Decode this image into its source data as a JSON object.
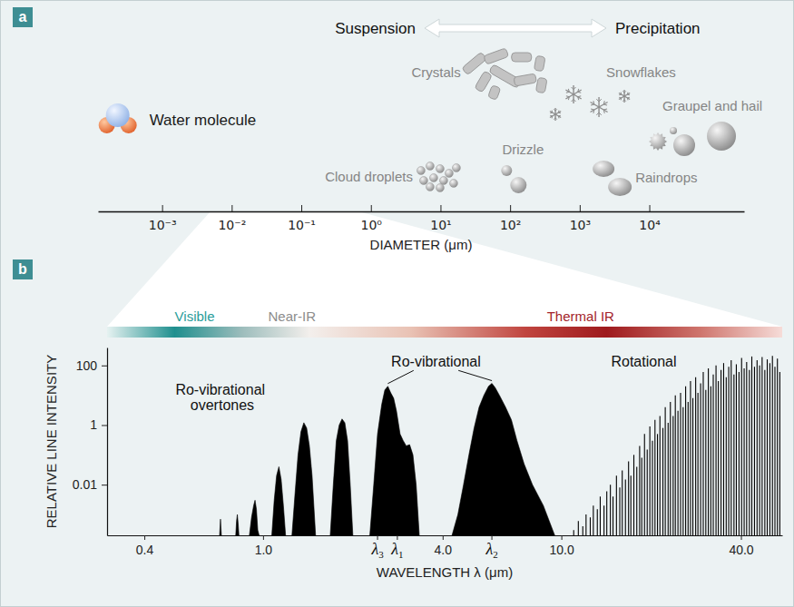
{
  "chart_data": [
    {
      "type": "scale",
      "panel_label": "a",
      "xlabel": "DIAMETER (μm)",
      "log": "x",
      "xlim": [
        0.00012,
        230000
      ],
      "xticks": [
        {
          "value": 0.001,
          "label": "10⁻³"
        },
        {
          "value": 0.01,
          "label": "10⁻²"
        },
        {
          "value": 0.1,
          "label": "10⁻¹"
        },
        {
          "value": 1,
          "label": "10⁰"
        },
        {
          "value": 10,
          "label": "10¹"
        },
        {
          "value": 100,
          "label": "10²"
        },
        {
          "value": 1000,
          "label": "10³"
        },
        {
          "value": 10000,
          "label": "10⁴"
        }
      ],
      "header": [
        "Suspension",
        "Precipitation"
      ],
      "items": [
        {
          "name": "Water molecule",
          "x": 0.00023
        },
        {
          "name": "Cloud droplets",
          "x": 9
        },
        {
          "name": "Drizzle",
          "x": 110
        },
        {
          "name": "Crystals",
          "x": 80
        },
        {
          "name": "Snowflakes",
          "x": 1400
        },
        {
          "name": "Raindrops",
          "x": 2800
        },
        {
          "name": "Graupel and hail",
          "x": 38000
        }
      ]
    },
    {
      "type": "spectrum",
      "panel_label": "b",
      "xlabel": "WAVELENGTH λ (μm)",
      "ylabel": "RELATIVE LINE INTENSITY",
      "log": true,
      "xlim": [
        0.3,
        55
      ],
      "ylim": [
        0.0002,
        400
      ],
      "xticks": [
        0.4,
        {
          "value": 1,
          "label": "1.0"
        },
        {
          "value": 4,
          "label": "4.0"
        },
        {
          "value": 10,
          "label": "10.0"
        },
        {
          "value": 40,
          "label": "40.0"
        }
      ],
      "yticks": [
        0.01,
        1,
        100
      ],
      "regions": [
        {
          "name": "Visible",
          "x": 0.59,
          "color": "#2a9d9a"
        },
        {
          "name": "Near-IR",
          "x": 1.25,
          "color": "#8c8c8c"
        },
        {
          "name": "Thermal IR",
          "x": 11.6,
          "color": "#a3232a"
        }
      ],
      "series": [
        {
          "type": "area",
          "color": "#000000",
          "x": [
            0.715,
            0.72,
            0.725,
            null,
            0.81,
            0.815,
            0.82,
            0.825,
            0.83,
            null,
            0.9,
            0.915,
            0.93,
            0.94,
            0.95,
            0.96,
            0.97,
            null,
            1.07,
            1.09,
            1.11,
            1.13,
            1.15,
            1.17,
            1.19,
            null,
            1.25,
            1.28,
            1.31,
            1.34,
            1.37,
            1.4,
            1.43,
            1.46,
            1.5,
            null,
            1.68,
            1.72,
            1.76,
            1.8,
            1.84,
            1.88,
            1.92,
            1.96,
            2.0,
            null,
            2.28,
            2.35,
            2.42,
            2.5,
            2.56,
            2.62,
            2.68,
            2.74,
            2.8,
            2.88,
            2.95,
            3.02,
            3.1,
            3.18,
            3.26,
            3.34,
            null,
            4.3,
            4.5,
            4.7,
            4.9,
            5.1,
            5.3,
            5.5,
            5.7,
            5.85,
            6.0,
            6.2,
            6.5,
            6.8,
            7.1,
            7.5,
            8.0,
            8.7,
            9.5
          ],
          "values": [
            0.0002,
            0.0007,
            0.0002,
            null,
            0.0002,
            0.0006,
            0.001,
            0.0005,
            0.0002,
            null,
            0.0002,
            0.0008,
            0.002,
            0.003,
            0.0015,
            0.0003,
            0.0002,
            null,
            0.0002,
            0.003,
            0.02,
            0.04,
            0.015,
            0.002,
            0.0002,
            null,
            0.0002,
            0.005,
            0.1,
            0.6,
            1.2,
            0.8,
            0.2,
            0.02,
            0.0002,
            null,
            0.0002,
            0.01,
            0.3,
            1.0,
            1.6,
            1.2,
            0.3,
            0.01,
            0.0002,
            null,
            0.0002,
            0.01,
            0.5,
            5,
            15,
            20,
            12,
            8,
            3,
            0.5,
            0.3,
            0.2,
            0.22,
            0.1,
            0.01,
            0.0002,
            null,
            0.0002,
            0.001,
            0.01,
            0.1,
            0.8,
            4,
            10,
            20,
            25,
            18,
            10,
            4,
            1.5,
            0.3,
            0.05,
            0.01,
            0.002,
            0.0002
          ]
        },
        {
          "type": "stem",
          "color": "#000000",
          "x": [
            11.0,
            11.4,
            11.8,
            12.1,
            12.5,
            12.8,
            13.2,
            13.5,
            13.9,
            14.2,
            14.6,
            14.9,
            15.3,
            15.7,
            16.0,
            16.4,
            16.8,
            17.1,
            17.5,
            17.9,
            18.3,
            18.6,
            19.0,
            19.4,
            19.8,
            20.2,
            20.6,
            21.0,
            21.4,
            21.9,
            22.3,
            22.8,
            23.2,
            23.7,
            24.1,
            24.6,
            25.1,
            25.6,
            26.1,
            26.6,
            27.1,
            27.6,
            28.2,
            28.7,
            29.3,
            29.9,
            30.5,
            31.1,
            31.7,
            32.3,
            33.0,
            33.6,
            34.3,
            35.0,
            35.7,
            36.4,
            37.1,
            37.9,
            38.6,
            39.4,
            40.2,
            41.0,
            41.8,
            42.7,
            43.5,
            44.4,
            45.3,
            46.2,
            47.1,
            48.1,
            49.0,
            50.0,
            51.0,
            52.0,
            53.0,
            54.0
          ],
          "values": [
            0.0003,
            0.0006,
            0.0004,
            0.001,
            0.0008,
            0.002,
            0.0015,
            0.004,
            0.002,
            0.006,
            0.01,
            0.004,
            0.02,
            0.008,
            0.03,
            0.015,
            0.06,
            0.02,
            0.1,
            0.04,
            0.2,
            0.08,
            0.5,
            0.15,
            0.9,
            0.3,
            1.5,
            0.5,
            2,
            0.8,
            4,
            1.2,
            6,
            2,
            10,
            3,
            12,
            4,
            20,
            6,
            30,
            8,
            40,
            12,
            25,
            60,
            15,
            80,
            20,
            50,
            100,
            30,
            70,
            120,
            40,
            90,
            150,
            50,
            110,
            60,
            180,
            80,
            130,
            70,
            200,
            90,
            150,
            100,
            190,
            70,
            160,
            120,
            210,
            90,
            170,
            60
          ]
        }
      ],
      "annotations": [
        {
          "text": "Ro-vibrational overtones",
          "x": 0.73,
          "y": 10.5
        },
        {
          "text": "Ro-vibrational",
          "x": 3.8,
          "y": 90,
          "targets": [
            {
              "x": 2.62,
              "y": 20
            },
            {
              "x": 5.85,
              "y": 25
            }
          ]
        },
        {
          "text": "Rotational",
          "x": 18.9,
          "y": 90
        }
      ],
      "wavelength_labels": [
        {
          "text": "λ3",
          "x": 2.42
        },
        {
          "text": "λ1",
          "x": 2.82
        },
        {
          "text": "λ2",
          "x": 5.85
        }
      ]
    }
  ]
}
